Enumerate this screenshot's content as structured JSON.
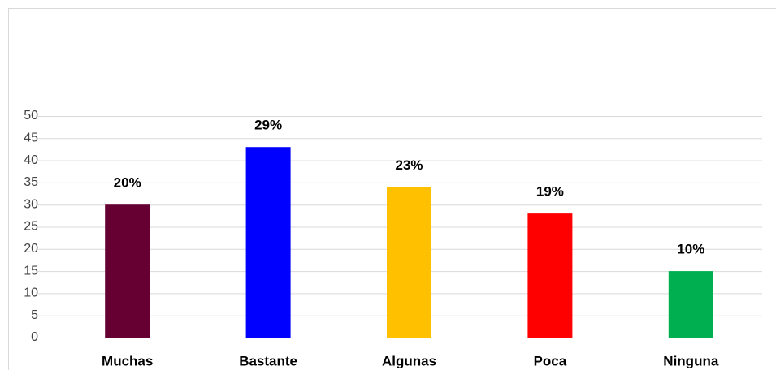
{
  "chart_data": {
    "type": "bar",
    "categories": [
      "Muchas",
      "Bastante",
      "Algunas",
      "Poca",
      "Ninguna"
    ],
    "values": [
      30,
      43,
      34,
      28,
      15
    ],
    "value_labels": [
      "20%",
      "29%",
      "23%",
      "19%",
      "10%"
    ],
    "colors": [
      "#660033",
      "#0000ff",
      "#ffc000",
      "#ff0000",
      "#00b050"
    ],
    "ylim": [
      0,
      50
    ],
    "yticks": [
      0,
      5,
      10,
      15,
      20,
      25,
      30,
      35,
      40,
      45,
      50
    ],
    "grid": true
  }
}
